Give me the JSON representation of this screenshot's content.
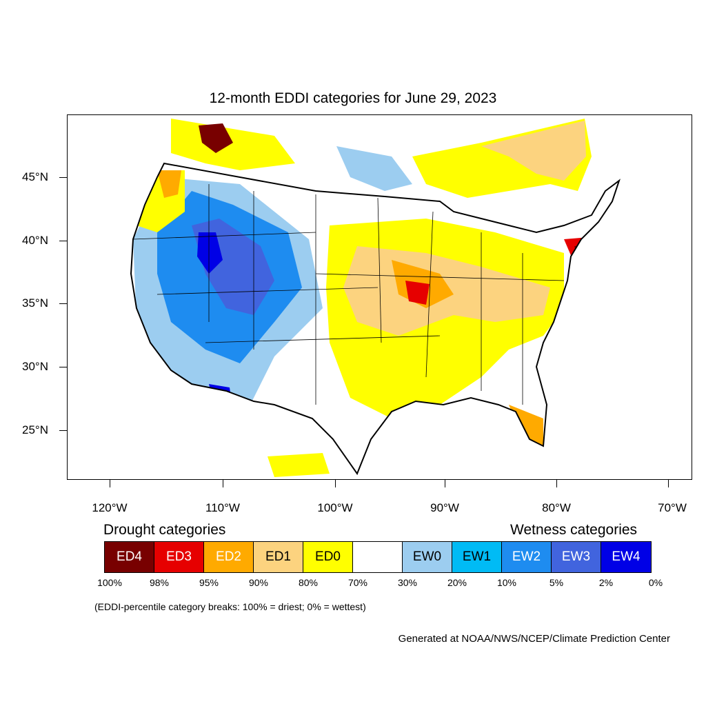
{
  "map": {
    "title": "12-month EDDI categories for June 29, 2023",
    "latitude_labels": [
      "45°N",
      "40°N",
      "35°N",
      "30°N",
      "25°N"
    ],
    "longitude_labels": [
      "120°W",
      "110°W",
      "100°W",
      "90°W",
      "80°W",
      "70°W"
    ],
    "region": "Contiguous United States"
  },
  "legend": {
    "drought_heading": "Drought categories",
    "wetness_heading": "Wetness categories",
    "categories": [
      {
        "label": "ED4",
        "color": "#780000",
        "text_color": "#ffffff"
      },
      {
        "label": "ED3",
        "color": "#e60000",
        "text_color": "#ffffff"
      },
      {
        "label": "ED2",
        "color": "#ffaa00",
        "text_color": "#ffffff"
      },
      {
        "label": "ED1",
        "color": "#fcd37f",
        "text_color": "#000000"
      },
      {
        "label": "ED0",
        "color": "#ffff00",
        "text_color": "#000000"
      },
      {
        "label": "",
        "color": "#ffffff",
        "text_color": "#000000"
      },
      {
        "label": "EW0",
        "color": "#9ccdf0",
        "text_color": "#000000"
      },
      {
        "label": "EW1",
        "color": "#00bbf5",
        "text_color": "#000000"
      },
      {
        "label": "EW2",
        "color": "#1e8cf0",
        "text_color": "#ffffff"
      },
      {
        "label": "EW3",
        "color": "#4164de",
        "text_color": "#ffffff"
      },
      {
        "label": "EW4",
        "color": "#0000e6",
        "text_color": "#ffffff"
      }
    ],
    "percentiles": [
      "100%",
      "98%",
      "95%",
      "90%",
      "80%",
      "70%",
      "30%",
      "20%",
      "10%",
      "5%",
      "2%",
      "0%"
    ],
    "note": "(EDDI-percentile category breaks: 100% = driest; 0% = wettest)"
  },
  "credit": "Generated at NOAA/NWS/NCEP/Climate Prediction Center"
}
